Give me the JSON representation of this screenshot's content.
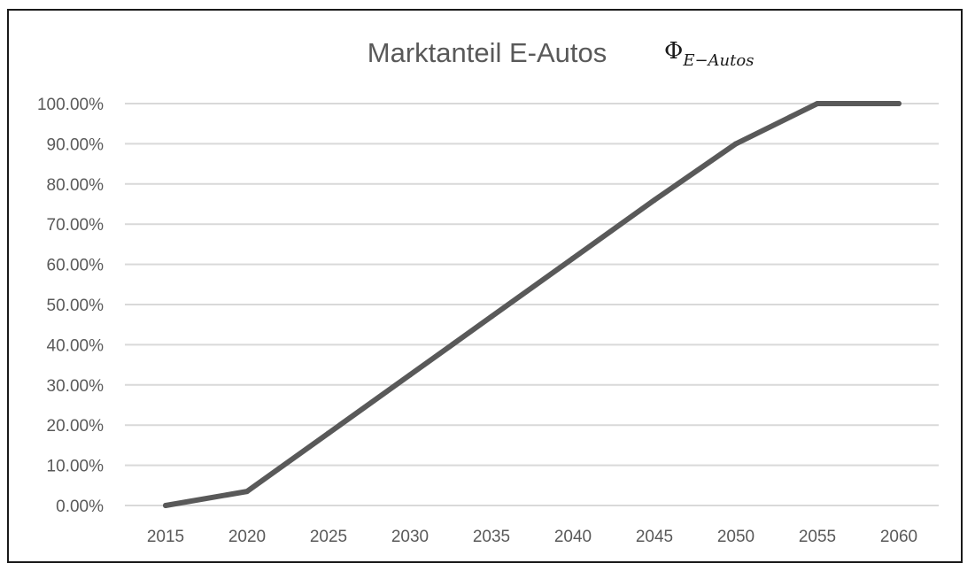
{
  "chart_data": {
    "type": "line",
    "title": "Marktanteil E-Autos",
    "title_symbol": "Φ",
    "title_symbol_subscript": "E−Autos",
    "xlabel": "",
    "ylabel": "",
    "x": [
      "2015",
      "2020",
      "2025",
      "2030",
      "2035",
      "2040",
      "2045",
      "2050",
      "2055",
      "2060"
    ],
    "series": [
      {
        "values": [
          0.0,
          3.5,
          18.0,
          32.5,
          47.0,
          61.5,
          76.0,
          90.0,
          100.0,
          100.0
        ]
      }
    ],
    "ylim": [
      0,
      100
    ],
    "y_ticks": [
      "0.00%",
      "10.00%",
      "20.00%",
      "30.00%",
      "40.00%",
      "50.00%",
      "60.00%",
      "70.00%",
      "80.00%",
      "90.00%",
      "100.00%"
    ],
    "grid": true,
    "legend": "none",
    "line_color": "#595959",
    "grid_color": "#d9d9d9"
  }
}
